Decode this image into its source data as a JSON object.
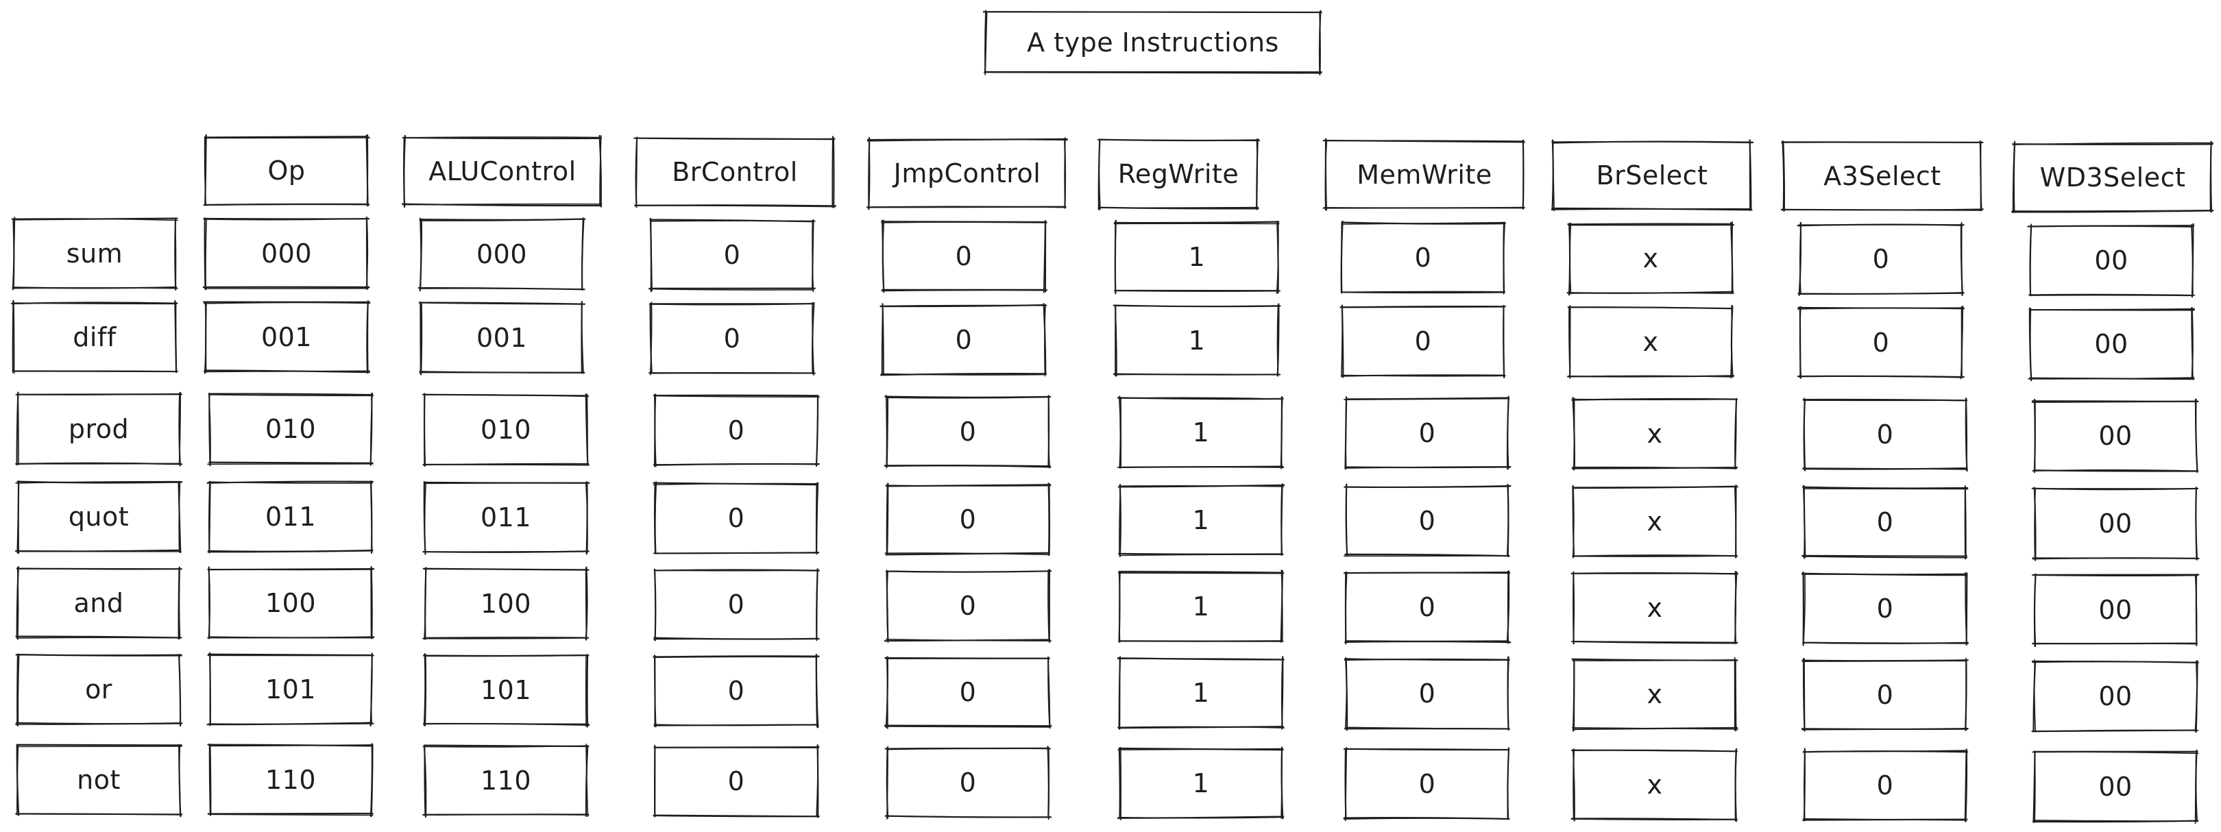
{
  "title": "A type Instructions",
  "headers": [
    "Op",
    "ALUControl",
    "BrControl",
    "JmpControl",
    "RegWrite",
    "MemWrite",
    "BrSelect",
    "A3Select",
    "WD3Select"
  ],
  "rows": [
    {
      "label": "sum",
      "values": [
        "000",
        "000",
        "0",
        "0",
        "1",
        "0",
        "x",
        "0",
        "00"
      ]
    },
    {
      "label": "diff",
      "values": [
        "001",
        "001",
        "0",
        "0",
        "1",
        "0",
        "x",
        "0",
        "00"
      ]
    },
    {
      "label": "prod",
      "values": [
        "010",
        "010",
        "0",
        "0",
        "1",
        "0",
        "x",
        "0",
        "00"
      ]
    },
    {
      "label": "quot",
      "values": [
        "011",
        "011",
        "0",
        "0",
        "1",
        "0",
        "x",
        "0",
        "00"
      ]
    },
    {
      "label": "and",
      "values": [
        "100",
        "100",
        "0",
        "0",
        "1",
        "0",
        "x",
        "0",
        "00"
      ]
    },
    {
      "label": "or",
      "values": [
        "101",
        "101",
        "0",
        "0",
        "1",
        "0",
        "x",
        "0",
        "00"
      ]
    },
    {
      "label": "not",
      "values": [
        "110",
        "110",
        "0",
        "0",
        "1",
        "0",
        "x",
        "0",
        "00"
      ]
    }
  ],
  "colors": {
    "stroke": "#1e1e1e",
    "background": "#ffffff"
  }
}
